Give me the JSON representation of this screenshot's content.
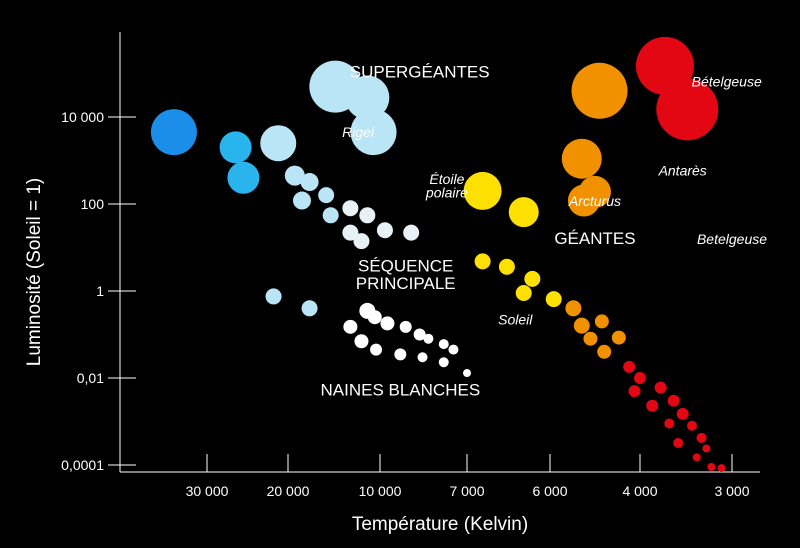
{
  "chart_data": {
    "type": "scatter",
    "title": "",
    "xlabel": "Température (Kelvin)",
    "ylabel": "Luminosité (Soleil = 1)",
    "x_scale": "log",
    "x_reversed": true,
    "y_scale": "log",
    "xlim": [
      45000,
      2600
    ],
    "ylim": [
      3e-05,
      300000
    ],
    "grid": false,
    "background": "#000000",
    "x_ticks": [
      {
        "value": 30000,
        "label": "30 000"
      },
      {
        "value": 20000,
        "label": "20 000"
      },
      {
        "value": 10000,
        "label": "10 000"
      },
      {
        "value": 7000,
        "label": "7 000"
      },
      {
        "value": 6000,
        "label": "6 000"
      },
      {
        "value": 4000,
        "label": "4 000"
      },
      {
        "value": 3000,
        "label": "3 000"
      }
    ],
    "y_ticks": [
      {
        "value": 10000,
        "label": "10 000"
      },
      {
        "value": 100,
        "label": "100"
      },
      {
        "value": 1,
        "label": "1"
      },
      {
        "value": 0.01,
        "label": "0,01"
      },
      {
        "value": 0.0001,
        "label": "0,0001"
      }
    ],
    "regions": [
      {
        "text": "SUPERGÉANTES",
        "x": 8500,
        "y": 80000
      },
      {
        "text": "GÉANTES",
        "x": 4900,
        "y": 12
      },
      {
        "text": "SÉQUENCE",
        "x": 9000,
        "y": 2.8
      },
      {
        "text": "PRINCIPALE",
        "x": 9000,
        "y": 1.1
      },
      {
        "text": "NAINES BLANCHES",
        "x": 9200,
        "y": 0.004
      }
    ],
    "star_labels": [
      {
        "text": "Bételgeuse",
        "x": 3050,
        "y": 50000
      },
      {
        "text": "Rigel",
        "x": 11800,
        "y": 3500
      },
      {
        "text": "Étoile",
        "x": 7600,
        "y": 290
      },
      {
        "text": "polaire",
        "x": 7600,
        "y": 140
      },
      {
        "text": "Arcturus",
        "x": 4900,
        "y": 90
      },
      {
        "text": "Antarès",
        "x": 3500,
        "y": 450
      },
      {
        "text": "Betelgeuse",
        "x": 3000,
        "y": 12
      },
      {
        "text": "Soleil",
        "x": 6400,
        "y": 0.17
      }
    ],
    "series": [
      {
        "color": "#1a8ee8",
        "points": [
          {
            "x": 35000,
            "y": 4500,
            "r": 23
          }
        ]
      },
      {
        "color": "#2ab4ee",
        "points": [
          {
            "x": 26000,
            "y": 2000,
            "r": 16
          },
          {
            "x": 25000,
            "y": 400,
            "r": 16
          }
        ]
      },
      {
        "color": "#b9e5f6",
        "points": [
          {
            "x": 14000,
            "y": 50000,
            "r": 26
          },
          {
            "x": 11000,
            "y": 28000,
            "r": 22
          },
          {
            "x": 10500,
            "y": 4500,
            "r": 23
          },
          {
            "x": 21000,
            "y": 2500,
            "r": 18
          },
          {
            "x": 19000,
            "y": 450,
            "r": 10
          },
          {
            "x": 17000,
            "y": 320,
            "r": 9
          },
          {
            "x": 15000,
            "y": 160,
            "r": 8
          },
          {
            "x": 18000,
            "y": 120,
            "r": 9
          },
          {
            "x": 14500,
            "y": 55,
            "r": 8
          },
          {
            "x": 21500,
            "y": 0.75,
            "r": 8
          },
          {
            "x": 17000,
            "y": 0.4,
            "r": 8
          }
        ]
      },
      {
        "color": "#e8f2f6",
        "points": [
          {
            "x": 12500,
            "y": 80,
            "r": 8
          },
          {
            "x": 11000,
            "y": 55,
            "r": 8
          },
          {
            "x": 12500,
            "y": 22,
            "r": 8
          },
          {
            "x": 11500,
            "y": 14,
            "r": 8
          },
          {
            "x": 9800,
            "y": 25,
            "r": 8
          },
          {
            "x": 8800,
            "y": 22,
            "r": 8
          }
        ]
      },
      {
        "color": "#ffffff",
        "points": [
          {
            "x": 11000,
            "y": 0.35,
            "r": 8
          },
          {
            "x": 10400,
            "y": 0.25,
            "r": 7
          },
          {
            "x": 9700,
            "y": 0.18,
            "r": 7
          },
          {
            "x": 9000,
            "y": 0.15,
            "r": 6
          },
          {
            "x": 8500,
            "y": 0.1,
            "r": 6
          },
          {
            "x": 8200,
            "y": 0.08,
            "r": 5
          },
          {
            "x": 7700,
            "y": 0.06,
            "r": 5
          },
          {
            "x": 7400,
            "y": 0.045,
            "r": 5
          },
          {
            "x": 12500,
            "y": 0.15,
            "r": 7
          },
          {
            "x": 11500,
            "y": 0.07,
            "r": 7
          },
          {
            "x": 10300,
            "y": 0.045,
            "r": 6
          },
          {
            "x": 9200,
            "y": 0.035,
            "r": 6
          },
          {
            "x": 8400,
            "y": 0.03,
            "r": 5
          },
          {
            "x": 7700,
            "y": 0.023,
            "r": 5
          },
          {
            "x": 7000,
            "y": 0.013,
            "r": 4
          }
        ]
      },
      {
        "color": "#fde000",
        "points": [
          {
            "x": 6800,
            "y": 200,
            "r": 19
          },
          {
            "x": 6300,
            "y": 65,
            "r": 15
          },
          {
            "x": 6800,
            "y": 4.8,
            "r": 8
          },
          {
            "x": 6500,
            "y": 3.6,
            "r": 8
          },
          {
            "x": 6200,
            "y": 1.9,
            "r": 8
          },
          {
            "x": 6300,
            "y": 0.9,
            "r": 8
          },
          {
            "x": 5900,
            "y": 0.65,
            "r": 8
          }
        ]
      },
      {
        "color": "#f29100",
        "points": [
          {
            "x": 4800,
            "y": 40000,
            "r": 28
          },
          {
            "x": 5200,
            "y": 1100,
            "r": 20
          },
          {
            "x": 4900,
            "y": 190,
            "r": 16
          },
          {
            "x": 5150,
            "y": 120,
            "r": 16
          },
          {
            "x": 5400,
            "y": 0.4,
            "r": 8
          },
          {
            "x": 4750,
            "y": 0.2,
            "r": 7
          },
          {
            "x": 5200,
            "y": 0.16,
            "r": 8
          },
          {
            "x": 5000,
            "y": 0.08,
            "r": 7
          },
          {
            "x": 4400,
            "y": 0.085,
            "r": 7
          },
          {
            "x": 4700,
            "y": 0.04,
            "r": 7
          }
        ]
      },
      {
        "color": "#e30613",
        "points": [
          {
            "x": 3700,
            "y": 150000,
            "r": 29
          },
          {
            "x": 3450,
            "y": 15000,
            "r": 31
          },
          {
            "x": 4200,
            "y": 0.018,
            "r": 6
          },
          {
            "x": 4000,
            "y": 0.01,
            "r": 6
          },
          {
            "x": 3750,
            "y": 0.006,
            "r": 6
          },
          {
            "x": 4100,
            "y": 0.005,
            "r": 6
          },
          {
            "x": 3600,
            "y": 0.003,
            "r": 6
          },
          {
            "x": 3850,
            "y": 0.0023,
            "r": 6
          },
          {
            "x": 3500,
            "y": 0.0015,
            "r": 6
          },
          {
            "x": 3650,
            "y": 0.0009,
            "r": 5
          },
          {
            "x": 3400,
            "y": 0.0008,
            "r": 5
          },
          {
            "x": 3300,
            "y": 0.00042,
            "r": 5
          },
          {
            "x": 3550,
            "y": 0.00032,
            "r": 5
          },
          {
            "x": 3250,
            "y": 0.00024,
            "r": 4
          },
          {
            "x": 3350,
            "y": 0.00015,
            "r": 4
          },
          {
            "x": 3200,
            "y": 9e-05,
            "r": 4
          },
          {
            "x": 3100,
            "y": 8.5e-05,
            "r": 4
          }
        ]
      }
    ]
  }
}
